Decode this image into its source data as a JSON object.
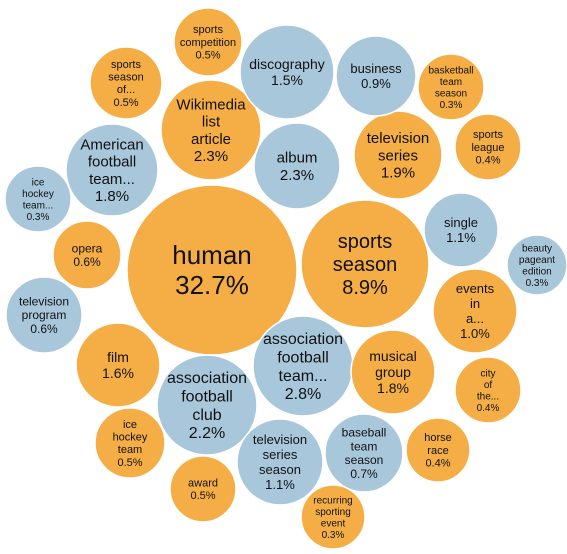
{
  "chart_data": {
    "type": "bubble",
    "colors": {
      "orange": "#F5AE45",
      "blue": "#A8C7DB"
    },
    "bubbles": [
      {
        "name": "human",
        "lines": [
          "human"
        ],
        "value": "32.7%",
        "percent": 32.7,
        "color": "orange"
      },
      {
        "name": "sports-season",
        "lines": [
          "sports",
          "season"
        ],
        "value": "8.9%",
        "percent": 8.9,
        "color": "orange"
      },
      {
        "name": "association-football-team",
        "lines": [
          "association",
          "football",
          "team..."
        ],
        "value": "2.8%",
        "percent": 2.8,
        "color": "blue"
      },
      {
        "name": "wikimedia-list-article",
        "lines": [
          "Wikimedia",
          "list",
          "article"
        ],
        "value": "2.3%",
        "percent": 2.3,
        "color": "orange"
      },
      {
        "name": "album",
        "lines": [
          "album"
        ],
        "value": "2.3%",
        "percent": 2.3,
        "color": "blue"
      },
      {
        "name": "association-football-club",
        "lines": [
          "association",
          "football",
          "club"
        ],
        "value": "2.2%",
        "percent": 2.2,
        "color": "blue"
      },
      {
        "name": "television-series",
        "lines": [
          "television",
          "series"
        ],
        "value": "1.9%",
        "percent": 1.9,
        "color": "orange"
      },
      {
        "name": "american-football-team",
        "lines": [
          "American",
          "football",
          "team..."
        ],
        "value": "1.8%",
        "percent": 1.8,
        "color": "blue"
      },
      {
        "name": "musical-group",
        "lines": [
          "musical",
          "group"
        ],
        "value": "1.8%",
        "percent": 1.8,
        "color": "orange"
      },
      {
        "name": "film",
        "lines": [
          "film"
        ],
        "value": "1.6%",
        "percent": 1.6,
        "color": "orange"
      },
      {
        "name": "discography",
        "lines": [
          "discography"
        ],
        "value": "1.5%",
        "percent": 1.5,
        "color": "blue"
      },
      {
        "name": "single",
        "lines": [
          "single"
        ],
        "value": "1.1%",
        "percent": 1.1,
        "color": "blue"
      },
      {
        "name": "television-series-season",
        "lines": [
          "television",
          "series",
          "season"
        ],
        "value": "1.1%",
        "percent": 1.1,
        "color": "blue"
      },
      {
        "name": "events-in-a",
        "lines": [
          "events",
          "in",
          "a..."
        ],
        "value": "1.0%",
        "percent": 1.0,
        "color": "orange"
      },
      {
        "name": "business",
        "lines": [
          "business"
        ],
        "value": "0.9%",
        "percent": 0.9,
        "color": "blue"
      },
      {
        "name": "baseball-team-season",
        "lines": [
          "baseball",
          "team",
          "season"
        ],
        "value": "0.7%",
        "percent": 0.7,
        "color": "blue"
      },
      {
        "name": "opera",
        "lines": [
          "opera"
        ],
        "value": "0.6%",
        "percent": 0.6,
        "color": "orange"
      },
      {
        "name": "television-program",
        "lines": [
          "television",
          "program"
        ],
        "value": "0.6%",
        "percent": 0.6,
        "color": "blue"
      },
      {
        "name": "sports-competition",
        "lines": [
          "sports",
          "competition"
        ],
        "value": "0.5%",
        "percent": 0.5,
        "color": "orange"
      },
      {
        "name": "sports-season-of",
        "lines": [
          "sports",
          "season",
          "of..."
        ],
        "value": "0.5%",
        "percent": 0.5,
        "color": "orange"
      },
      {
        "name": "ice-hockey-team-orange",
        "lines": [
          "ice",
          "hockey",
          "team"
        ],
        "value": "0.5%",
        "percent": 0.5,
        "color": "orange"
      },
      {
        "name": "award",
        "lines": [
          "award"
        ],
        "value": "0.5%",
        "percent": 0.5,
        "color": "orange"
      },
      {
        "name": "sports-league",
        "lines": [
          "sports",
          "league"
        ],
        "value": "0.4%",
        "percent": 0.4,
        "color": "orange"
      },
      {
        "name": "city-of-the",
        "lines": [
          "city",
          "of",
          "the..."
        ],
        "value": "0.4%",
        "percent": 0.4,
        "color": "orange"
      },
      {
        "name": "horse-race",
        "lines": [
          "horse",
          "race"
        ],
        "value": "0.4%",
        "percent": 0.4,
        "color": "orange"
      },
      {
        "name": "basketball-team-season",
        "lines": [
          "basketball",
          "team",
          "season"
        ],
        "value": "0.3%",
        "percent": 0.3,
        "color": "orange"
      },
      {
        "name": "ice-hockey-team-blue",
        "lines": [
          "ice",
          "hockey",
          "team..."
        ],
        "value": "0.3%",
        "percent": 0.3,
        "color": "blue"
      },
      {
        "name": "beauty-pageant-edition",
        "lines": [
          "beauty",
          "pageant",
          "edition"
        ],
        "value": "0.3%",
        "percent": 0.3,
        "color": "blue"
      },
      {
        "name": "recurring-sporting-event",
        "lines": [
          "recurring",
          "sporting",
          "event"
        ],
        "value": "0.3%",
        "percent": 0.3,
        "color": "orange"
      }
    ]
  }
}
